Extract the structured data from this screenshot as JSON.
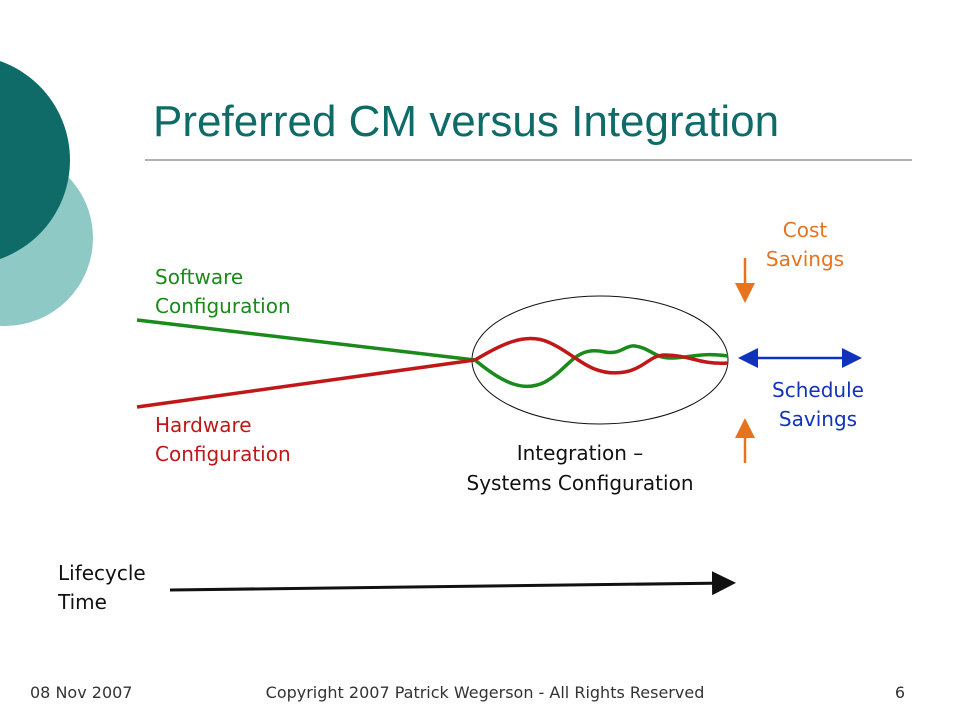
{
  "title": "Preferred CM versus Integration",
  "labels": {
    "software": [
      "Software",
      "Configuration"
    ],
    "hardware": [
      "Hardware",
      "Configuration"
    ],
    "integration": [
      "Integration –",
      "Systems Configuration"
    ],
    "cost": [
      "Cost",
      "Savings"
    ],
    "schedule": [
      "Schedule",
      "Savings"
    ],
    "lifecycle": [
      "Lifecycle",
      "Time"
    ]
  },
  "footer": {
    "date": "08 Nov 2007",
    "copyright": "Copyright 2007 Patrick Wegerson - All Rights Reserved",
    "page": "6"
  }
}
